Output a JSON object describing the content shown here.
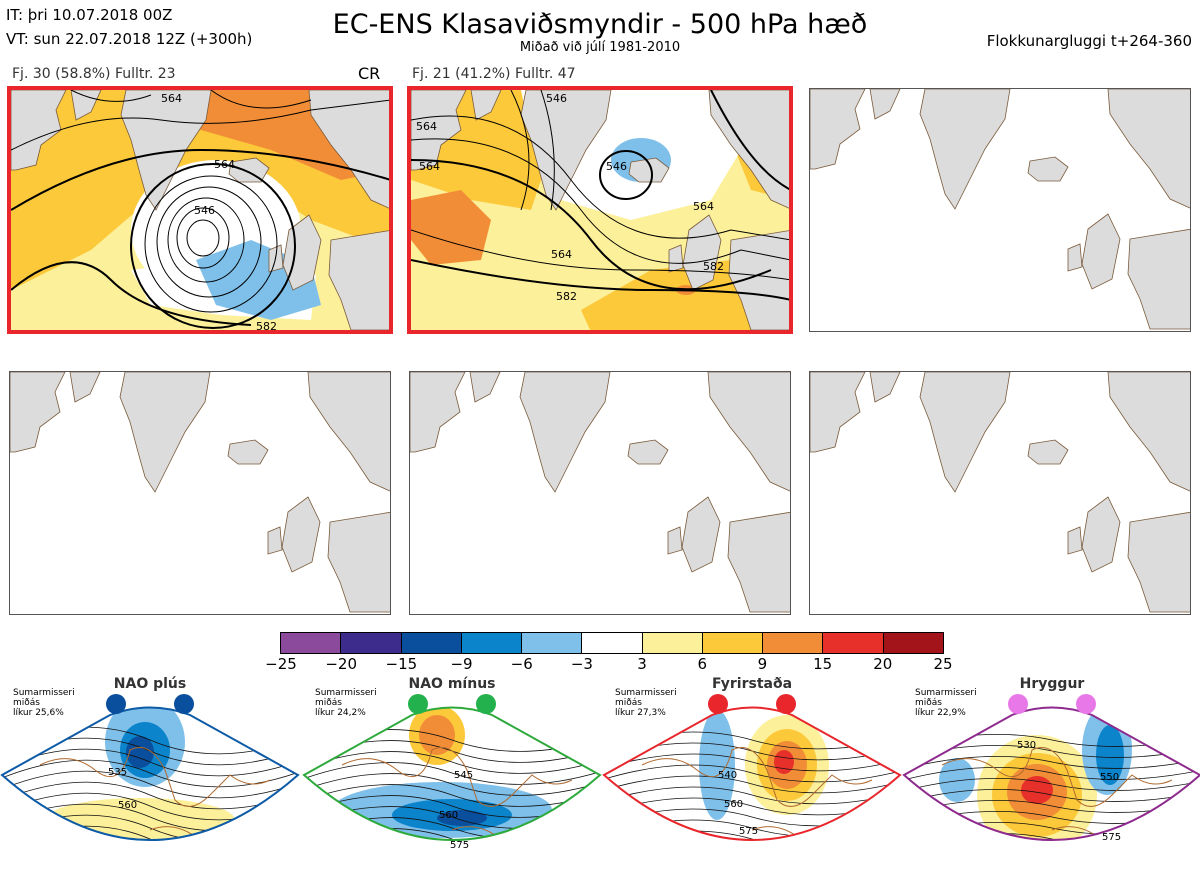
{
  "header": {
    "init_time": "IT: þri 10.07.2018 00Z",
    "valid_time": "VT: sun 22.07.2018 12Z  (+300h)",
    "title": "EC-ENS Klasaviðsmyndir - 500 hPa hæð",
    "subtitle": "Miðað við júlí 1981-2010",
    "window": "Flokkunargluggi t+264-360"
  },
  "clusters": [
    {
      "label": "Fj. 30 (58.8%)   Fulltr. 23",
      "tag": "CR",
      "contours": [
        "564",
        "564",
        "546",
        "582"
      ]
    },
    {
      "label": "Fj. 21 (41.2%)   Fulltr. 47",
      "tag": "",
      "contours": [
        "546",
        "546",
        "564",
        "564",
        "582",
        "582",
        "564",
        "564"
      ]
    }
  ],
  "colorbar": {
    "ticks": [
      "−25",
      "−20",
      "−15",
      "−9",
      "−6",
      "−3",
      "3",
      "6",
      "9",
      "15",
      "20",
      "25"
    ],
    "colors": [
      "#8b4a9c",
      "#3e2c8c",
      "#0a4f9e",
      "#0c84cc",
      "#7fc0ea",
      "#ffffff",
      "#fdf09a",
      "#fcc93a",
      "#f28d37",
      "#e8302b",
      "#a3131a"
    ]
  },
  "regimes": [
    {
      "name": "NAO plús",
      "info": "Sumarmisseri\nmiðás\nlíkur 25,6%",
      "dot_color": "#0a4f9e",
      "border": "#0d5aa6",
      "labels": [
        "535",
        "560"
      ]
    },
    {
      "name": "NAO mínus",
      "info": "Sumarmisseri\nmiðás\nlíkur 24,2%",
      "dot_color": "#22b14c",
      "border": "#2eaa3c",
      "labels": [
        "545",
        "560",
        "575"
      ]
    },
    {
      "name": "Fyrirstaða",
      "info": "Sumarmisseri\nmiðás\nlíkur 27,3%",
      "dot_color": "#e8262b",
      "border": "#e8262b",
      "labels": [
        "540",
        "560",
        "575"
      ]
    },
    {
      "name": "Hryggur",
      "info": "Sumarmisseri\nmiðás\nlíkur 22,9%",
      "dot_color": "#e878e8",
      "border": "#8e2a8e",
      "labels": [
        "530",
        "550",
        "575"
      ]
    }
  ]
}
